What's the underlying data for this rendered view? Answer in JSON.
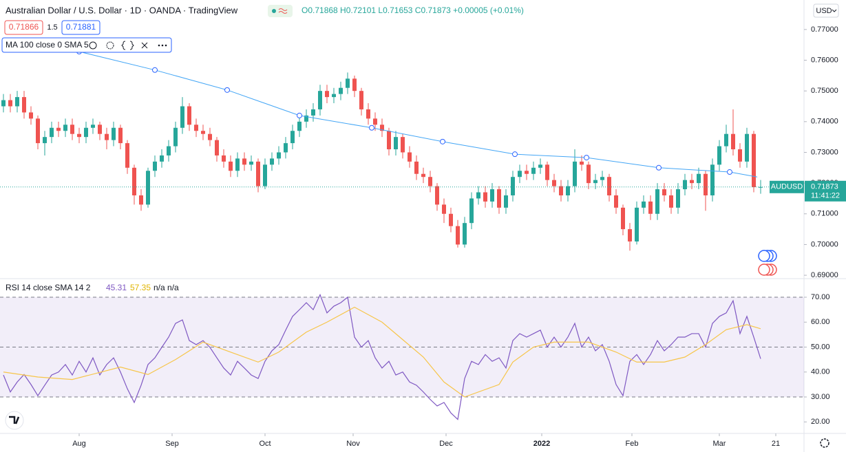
{
  "header": {
    "title": "Australian Dollar / U.S. Dollar · 1D · OANDA · TradingView",
    "ohlc": "O0.71868 H0.72101 L0.71653 C0.71873 +0.00005 (+0.01%)",
    "sell_price": "0.71866",
    "spread": "1.5",
    "buy_price": "0.71881",
    "currency": "USD"
  },
  "chart_data": [
    {
      "type": "candlestick",
      "symbol": "AUDUSD",
      "last_price": 0.71873,
      "countdown": "11:41:22",
      "up_color": "#26a69a",
      "down_color": "#ef5350",
      "xlim": [
        -0.5,
        116.3
      ],
      "ylim": [
        0.6889,
        0.7796
      ],
      "xticks": [
        {
          "value": 11,
          "label": "Aug"
        },
        {
          "value": 24.5,
          "label": "Sep"
        },
        {
          "value": 38,
          "label": "Oct"
        },
        {
          "value": 50.8,
          "label": "Nov"
        },
        {
          "value": 64.3,
          "label": "Dec"
        },
        {
          "value": 78.2,
          "label": "2022"
        },
        {
          "value": 91.3,
          "label": "Feb"
        },
        {
          "value": 104,
          "label": "Mar"
        },
        {
          "value": 112.2,
          "label": "21"
        }
      ],
      "yticks": [
        {
          "value": 0.77,
          "label": "0.77000"
        },
        {
          "value": 0.76,
          "label": "0.76000"
        },
        {
          "value": 0.75,
          "label": "0.75000"
        },
        {
          "value": 0.74,
          "label": "0.74000"
        },
        {
          "value": 0.73,
          "label": "0.73000"
        },
        {
          "value": 0.72,
          "label": "0.72000"
        },
        {
          "value": 0.71,
          "label": "0.71000"
        },
        {
          "value": 0.7,
          "label": "0.70000"
        },
        {
          "value": 0.69,
          "label": "0.69000"
        }
      ],
      "candles": [
        [
          0.745,
          0.749,
          0.743,
          0.747
        ],
        [
          0.747,
          0.749,
          0.743,
          0.745
        ],
        [
          0.745,
          0.75,
          0.743,
          0.748
        ],
        [
          0.748,
          0.75,
          0.741,
          0.743
        ],
        [
          0.743,
          0.745,
          0.739,
          0.741
        ],
        [
          0.741,
          0.742,
          0.731,
          0.733
        ],
        [
          0.733,
          0.737,
          0.729,
          0.735
        ],
        [
          0.735,
          0.74,
          0.733,
          0.738
        ],
        [
          0.738,
          0.74,
          0.735,
          0.737
        ],
        [
          0.737,
          0.741,
          0.735,
          0.739
        ],
        [
          0.739,
          0.741,
          0.734,
          0.736
        ],
        [
          0.736,
          0.738,
          0.733,
          0.735
        ],
        [
          0.735,
          0.74,
          0.733,
          0.738
        ],
        [
          0.738,
          0.741,
          0.736,
          0.739
        ],
        [
          0.739,
          0.74,
          0.734,
          0.736
        ],
        [
          0.736,
          0.738,
          0.731,
          0.734
        ],
        [
          0.734,
          0.74,
          0.732,
          0.738
        ],
        [
          0.738,
          0.739,
          0.731,
          0.733
        ],
        [
          0.733,
          0.734,
          0.723,
          0.725
        ],
        [
          0.725,
          0.726,
          0.713,
          0.716
        ],
        [
          0.716,
          0.718,
          0.711,
          0.713
        ],
        [
          0.713,
          0.725,
          0.712,
          0.724
        ],
        [
          0.724,
          0.729,
          0.722,
          0.727
        ],
        [
          0.727,
          0.731,
          0.725,
          0.729
        ],
        [
          0.729,
          0.734,
          0.727,
          0.732
        ],
        [
          0.732,
          0.74,
          0.73,
          0.738
        ],
        [
          0.738,
          0.748,
          0.736,
          0.745
        ],
        [
          0.745,
          0.746,
          0.737,
          0.739
        ],
        [
          0.739,
          0.741,
          0.735,
          0.737
        ],
        [
          0.737,
          0.739,
          0.734,
          0.736
        ],
        [
          0.736,
          0.738,
          0.732,
          0.734
        ],
        [
          0.734,
          0.735,
          0.727,
          0.729
        ],
        [
          0.729,
          0.731,
          0.725,
          0.727
        ],
        [
          0.727,
          0.729,
          0.722,
          0.724
        ],
        [
          0.724,
          0.73,
          0.722,
          0.728
        ],
        [
          0.728,
          0.73,
          0.724,
          0.726
        ],
        [
          0.726,
          0.729,
          0.724,
          0.727
        ],
        [
          0.727,
          0.728,
          0.717,
          0.719
        ],
        [
          0.719,
          0.728,
          0.718,
          0.726
        ],
        [
          0.726,
          0.73,
          0.724,
          0.728
        ],
        [
          0.728,
          0.732,
          0.726,
          0.73
        ],
        [
          0.73,
          0.735,
          0.728,
          0.733
        ],
        [
          0.733,
          0.739,
          0.731,
          0.737
        ],
        [
          0.737,
          0.742,
          0.735,
          0.74
        ],
        [
          0.74,
          0.744,
          0.738,
          0.742
        ],
        [
          0.742,
          0.746,
          0.74,
          0.744
        ],
        [
          0.744,
          0.752,
          0.742,
          0.75
        ],
        [
          0.75,
          0.752,
          0.746,
          0.748
        ],
        [
          0.748,
          0.751,
          0.746,
          0.749
        ],
        [
          0.749,
          0.753,
          0.747,
          0.751
        ],
        [
          0.751,
          0.756,
          0.749,
          0.754
        ],
        [
          0.754,
          0.755,
          0.748,
          0.75
        ],
        [
          0.75,
          0.751,
          0.742,
          0.744
        ],
        [
          0.744,
          0.746,
          0.739,
          0.741
        ],
        [
          0.741,
          0.743,
          0.737,
          0.739
        ],
        [
          0.739,
          0.741,
          0.735,
          0.737
        ],
        [
          0.737,
          0.738,
          0.729,
          0.731
        ],
        [
          0.731,
          0.737,
          0.729,
          0.735
        ],
        [
          0.735,
          0.736,
          0.728,
          0.73
        ],
        [
          0.73,
          0.732,
          0.725,
          0.727
        ],
        [
          0.727,
          0.729,
          0.721,
          0.723
        ],
        [
          0.723,
          0.725,
          0.72,
          0.722
        ],
        [
          0.722,
          0.724,
          0.717,
          0.719
        ],
        [
          0.719,
          0.72,
          0.711,
          0.713
        ],
        [
          0.713,
          0.715,
          0.707,
          0.71
        ],
        [
          0.71,
          0.712,
          0.704,
          0.706
        ],
        [
          0.706,
          0.708,
          0.699,
          0.7
        ],
        [
          0.7,
          0.709,
          0.699,
          0.707
        ],
        [
          0.707,
          0.717,
          0.705,
          0.715
        ],
        [
          0.715,
          0.719,
          0.713,
          0.717
        ],
        [
          0.717,
          0.719,
          0.712,
          0.714
        ],
        [
          0.714,
          0.72,
          0.712,
          0.718
        ],
        [
          0.718,
          0.719,
          0.71,
          0.712
        ],
        [
          0.712,
          0.718,
          0.71,
          0.716
        ],
        [
          0.716,
          0.724,
          0.714,
          0.722
        ],
        [
          0.722,
          0.726,
          0.72,
          0.724
        ],
        [
          0.724,
          0.726,
          0.721,
          0.723
        ],
        [
          0.723,
          0.727,
          0.721,
          0.725
        ],
        [
          0.725,
          0.728,
          0.723,
          0.726
        ],
        [
          0.726,
          0.727,
          0.719,
          0.721
        ],
        [
          0.721,
          0.723,
          0.717,
          0.719
        ],
        [
          0.719,
          0.721,
          0.714,
          0.716
        ],
        [
          0.716,
          0.721,
          0.714,
          0.719
        ],
        [
          0.719,
          0.731,
          0.717,
          0.727
        ],
        [
          0.727,
          0.729,
          0.724,
          0.726
        ],
        [
          0.726,
          0.727,
          0.718,
          0.72
        ],
        [
          0.72,
          0.723,
          0.718,
          0.721
        ],
        [
          0.721,
          0.724,
          0.719,
          0.722
        ],
        [
          0.722,
          0.723,
          0.714,
          0.716
        ],
        [
          0.716,
          0.718,
          0.71,
          0.712
        ],
        [
          0.712,
          0.713,
          0.703,
          0.705
        ],
        [
          0.705,
          0.707,
          0.698,
          0.701
        ],
        [
          0.701,
          0.714,
          0.7,
          0.712
        ],
        [
          0.712,
          0.716,
          0.71,
          0.714
        ],
        [
          0.714,
          0.716,
          0.708,
          0.71
        ],
        [
          0.71,
          0.72,
          0.708,
          0.718
        ],
        [
          0.718,
          0.72,
          0.714,
          0.716
        ],
        [
          0.716,
          0.718,
          0.71,
          0.712
        ],
        [
          0.712,
          0.72,
          0.71,
          0.718
        ],
        [
          0.718,
          0.723,
          0.716,
          0.721
        ],
        [
          0.721,
          0.723,
          0.718,
          0.72
        ],
        [
          0.72,
          0.725,
          0.718,
          0.723
        ],
        [
          0.723,
          0.724,
          0.711,
          0.716
        ],
        [
          0.716,
          0.728,
          0.714,
          0.726
        ],
        [
          0.726,
          0.734,
          0.724,
          0.732
        ],
        [
          0.732,
          0.739,
          0.73,
          0.736
        ],
        [
          0.736,
          0.744,
          0.729,
          0.731
        ],
        [
          0.731,
          0.733,
          0.725,
          0.727
        ],
        [
          0.727,
          0.738,
          0.725,
          0.736
        ],
        [
          0.736,
          0.737,
          0.717,
          0.71868
        ],
        [
          0.71868,
          0.72101,
          0.71653,
          0.71873
        ]
      ],
      "series": [
        {
          "name": "MA 100 close 0 SMA 5",
          "color": "#42a5f5",
          "x": [
            11,
            22,
            32.5,
            43,
            53.5,
            63.8,
            74.3,
            84.7,
            95.2,
            105.5,
            109.5
          ],
          "values": [
            0.7628,
            0.7568,
            0.7503,
            0.742,
            0.738,
            0.7335,
            0.7294,
            0.7283,
            0.725,
            0.7236,
            0.722
          ]
        }
      ]
    },
    {
      "type": "line",
      "legend": "RSI 14 close SMA 14 2",
      "na": "n/a n/a",
      "xlim": [
        -0.5,
        116.3
      ],
      "ylim": [
        15.38,
        77.45
      ],
      "yticks": [
        {
          "value": 70,
          "label": "70.00"
        },
        {
          "value": 60,
          "label": "60.00"
        },
        {
          "value": 50,
          "label": "50.00"
        },
        {
          "value": 40,
          "label": "40.00"
        },
        {
          "value": 30,
          "label": "30.00"
        },
        {
          "value": 20,
          "label": "20.00"
        }
      ],
      "band": [
        30,
        70
      ],
      "band_color": "#7e57c2",
      "levels": [
        70,
        50,
        30
      ],
      "series": [
        {
          "color": "#7e57c2",
          "values": [
            38.8,
            32,
            36,
            39,
            35,
            30.5,
            34.7,
            38.8,
            40,
            43,
            38.8,
            44.3,
            40,
            45.7,
            38.8,
            43,
            45.7,
            40,
            33.3,
            27.8,
            34.7,
            43,
            45.7,
            49.9,
            54,
            59.5,
            60.9,
            52.6,
            51,
            52.6,
            49.9,
            45.7,
            41.6,
            38.8,
            44.3,
            41.6,
            38.8,
            37.4,
            44.3,
            48.5,
            51,
            56.8,
            62.3,
            65,
            67.8,
            65,
            71,
            63.7,
            66.4,
            67.8,
            70,
            54,
            50,
            52.6,
            45.7,
            41.6,
            44.3,
            38.8,
            40,
            36,
            34.7,
            32,
            29,
            26.4,
            27.8,
            23.6,
            21,
            37.4,
            44.3,
            43,
            47,
            44.3,
            45.7,
            41.6,
            52.6,
            55.4,
            54,
            55.4,
            56.8,
            50,
            54,
            50,
            54,
            59.5,
            50,
            54,
            48.5,
            51,
            44.3,
            35,
            30.5,
            44.3,
            47,
            43,
            47,
            52.6,
            48.5,
            51,
            54,
            54,
            55.4,
            55.4,
            50,
            59.5,
            62.3,
            63.7,
            68.6,
            55.4,
            62.3,
            54,
            45.31
          ]
        },
        {
          "color": "#f7c548",
          "x": [
            0,
            5,
            10,
            17,
            21,
            25,
            29,
            33,
            37,
            40,
            44,
            47,
            51,
            55,
            58,
            61,
            64,
            67,
            72,
            74,
            77,
            80,
            85,
            89,
            92,
            96,
            99,
            102,
            105,
            108,
            110
          ],
          "values": [
            40,
            38,
            37,
            42,
            39,
            45,
            52,
            48,
            44,
            48,
            56,
            60,
            66,
            60,
            53,
            46,
            36,
            30,
            35,
            44,
            50,
            52,
            52,
            48,
            44,
            44,
            46,
            51,
            57,
            59,
            57.35
          ]
        }
      ]
    }
  ]
}
